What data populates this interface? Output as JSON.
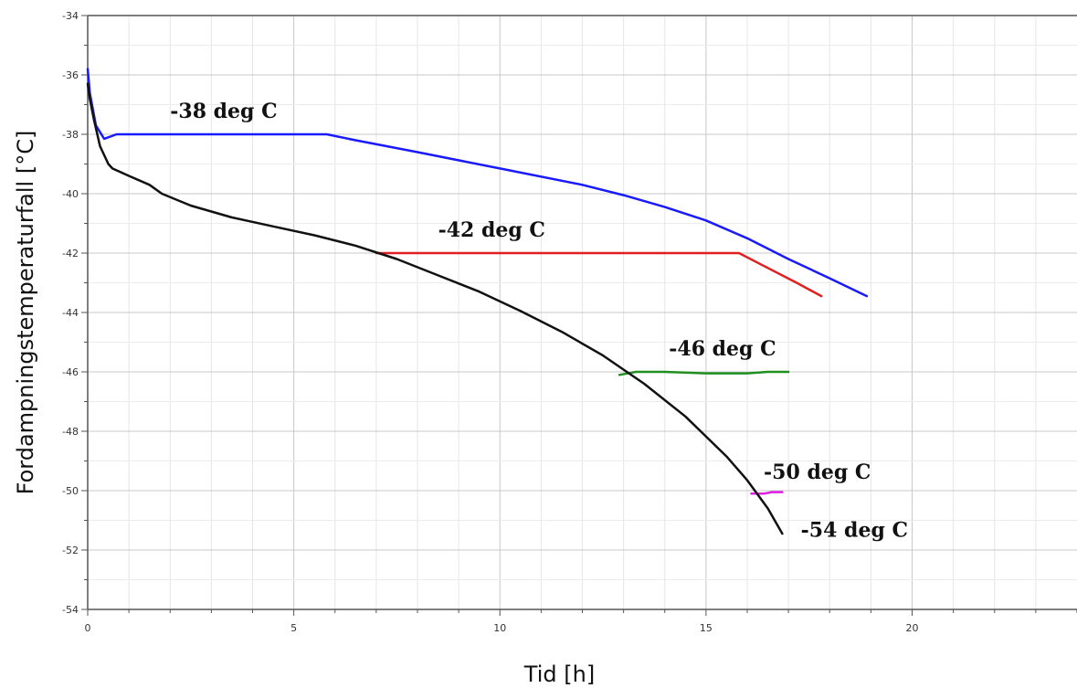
{
  "chart_data": {
    "type": "line",
    "title": "",
    "xlabel": "Tid [h]",
    "ylabel": "Fordampningstemperaturfall [°C]",
    "xlim": [
      0,
      24
    ],
    "ylim": [
      -54,
      -34
    ],
    "xticks": [
      0,
      5,
      10,
      15,
      20
    ],
    "xtick_labels": [
      "0",
      "5",
      "10",
      "15",
      "20"
    ],
    "yticks": [
      -54,
      -52,
      -50,
      -48,
      -46,
      -44,
      -42,
      -40,
      -38,
      -36,
      -34
    ],
    "ytick_labels": [
      "-54",
      "-52",
      "-50",
      "-48",
      "-46",
      "-44",
      "-42",
      "-40",
      "-38",
      "-36",
      "-34"
    ],
    "grid": true,
    "legend": "none",
    "series": [
      {
        "name": "-38 deg C",
        "color": "#1a1aff",
        "x": [
          0,
          0.05,
          0.2,
          0.4,
          0.7,
          2,
          4,
          5.8,
          6.5,
          8,
          10,
          12,
          13,
          14,
          15,
          16,
          17,
          18,
          18.9
        ],
        "y": [
          -35.8,
          -36.6,
          -37.7,
          -38.15,
          -38.0,
          -38.0,
          -38.0,
          -38.0,
          -38.2,
          -38.6,
          -39.15,
          -39.7,
          -40.05,
          -40.45,
          -40.9,
          -41.5,
          -42.2,
          -42.85,
          -43.45
        ]
      },
      {
        "name": "-42 deg C",
        "color": "#e02020",
        "x": [
          7.0,
          10,
          12,
          14,
          15.8,
          16.5,
          17.2,
          17.8
        ],
        "y": [
          -42.0,
          -42.0,
          -42.0,
          -42.0,
          -42.0,
          -42.5,
          -43.0,
          -43.45
        ]
      },
      {
        "name": "-46 deg C",
        "color": "#1f8f1f",
        "x": [
          12.9,
          13.3,
          14,
          15,
          16,
          16.5,
          17.0
        ],
        "y": [
          -46.1,
          -46.0,
          -46.0,
          -46.05,
          -46.05,
          -46.0,
          -46.0
        ]
      },
      {
        "name": "-50 deg C",
        "color": "#e020e0",
        "x": [
          16.1,
          16.4,
          16.6,
          16.85
        ],
        "y": [
          -50.1,
          -50.1,
          -50.05,
          -50.05
        ]
      },
      {
        "name": "-54 deg C",
        "color": "#111111",
        "x": [
          0,
          0.05,
          0.15,
          0.3,
          0.5,
          0.6,
          1,
          1.5,
          1.8,
          2.5,
          3.5,
          4.5,
          5.5,
          6.5,
          7.5,
          8.5,
          9.5,
          10.5,
          11.5,
          12.5,
          13.5,
          14.5,
          15.5,
          16,
          16.5,
          16.85
        ],
        "y": [
          -36.3,
          -36.8,
          -37.5,
          -38.4,
          -39.0,
          -39.15,
          -39.4,
          -39.7,
          -40.0,
          -40.4,
          -40.8,
          -41.1,
          -41.4,
          -41.75,
          -42.2,
          -42.75,
          -43.3,
          -43.95,
          -44.65,
          -45.45,
          -46.4,
          -47.5,
          -48.85,
          -49.65,
          -50.6,
          -51.45
        ]
      }
    ],
    "annotations": [
      {
        "text": "-38 deg C",
        "x": 2.0,
        "y": -37.45
      },
      {
        "text": "-42 deg C",
        "x": 8.5,
        "y": -41.45
      },
      {
        "text": "-46 deg C",
        "x": 14.1,
        "y": -45.45
      },
      {
        "text": "-50 deg C",
        "x": 16.4,
        "y": -49.6
      },
      {
        "text": "-54 deg C",
        "x": 17.3,
        "y": -51.55
      }
    ]
  }
}
